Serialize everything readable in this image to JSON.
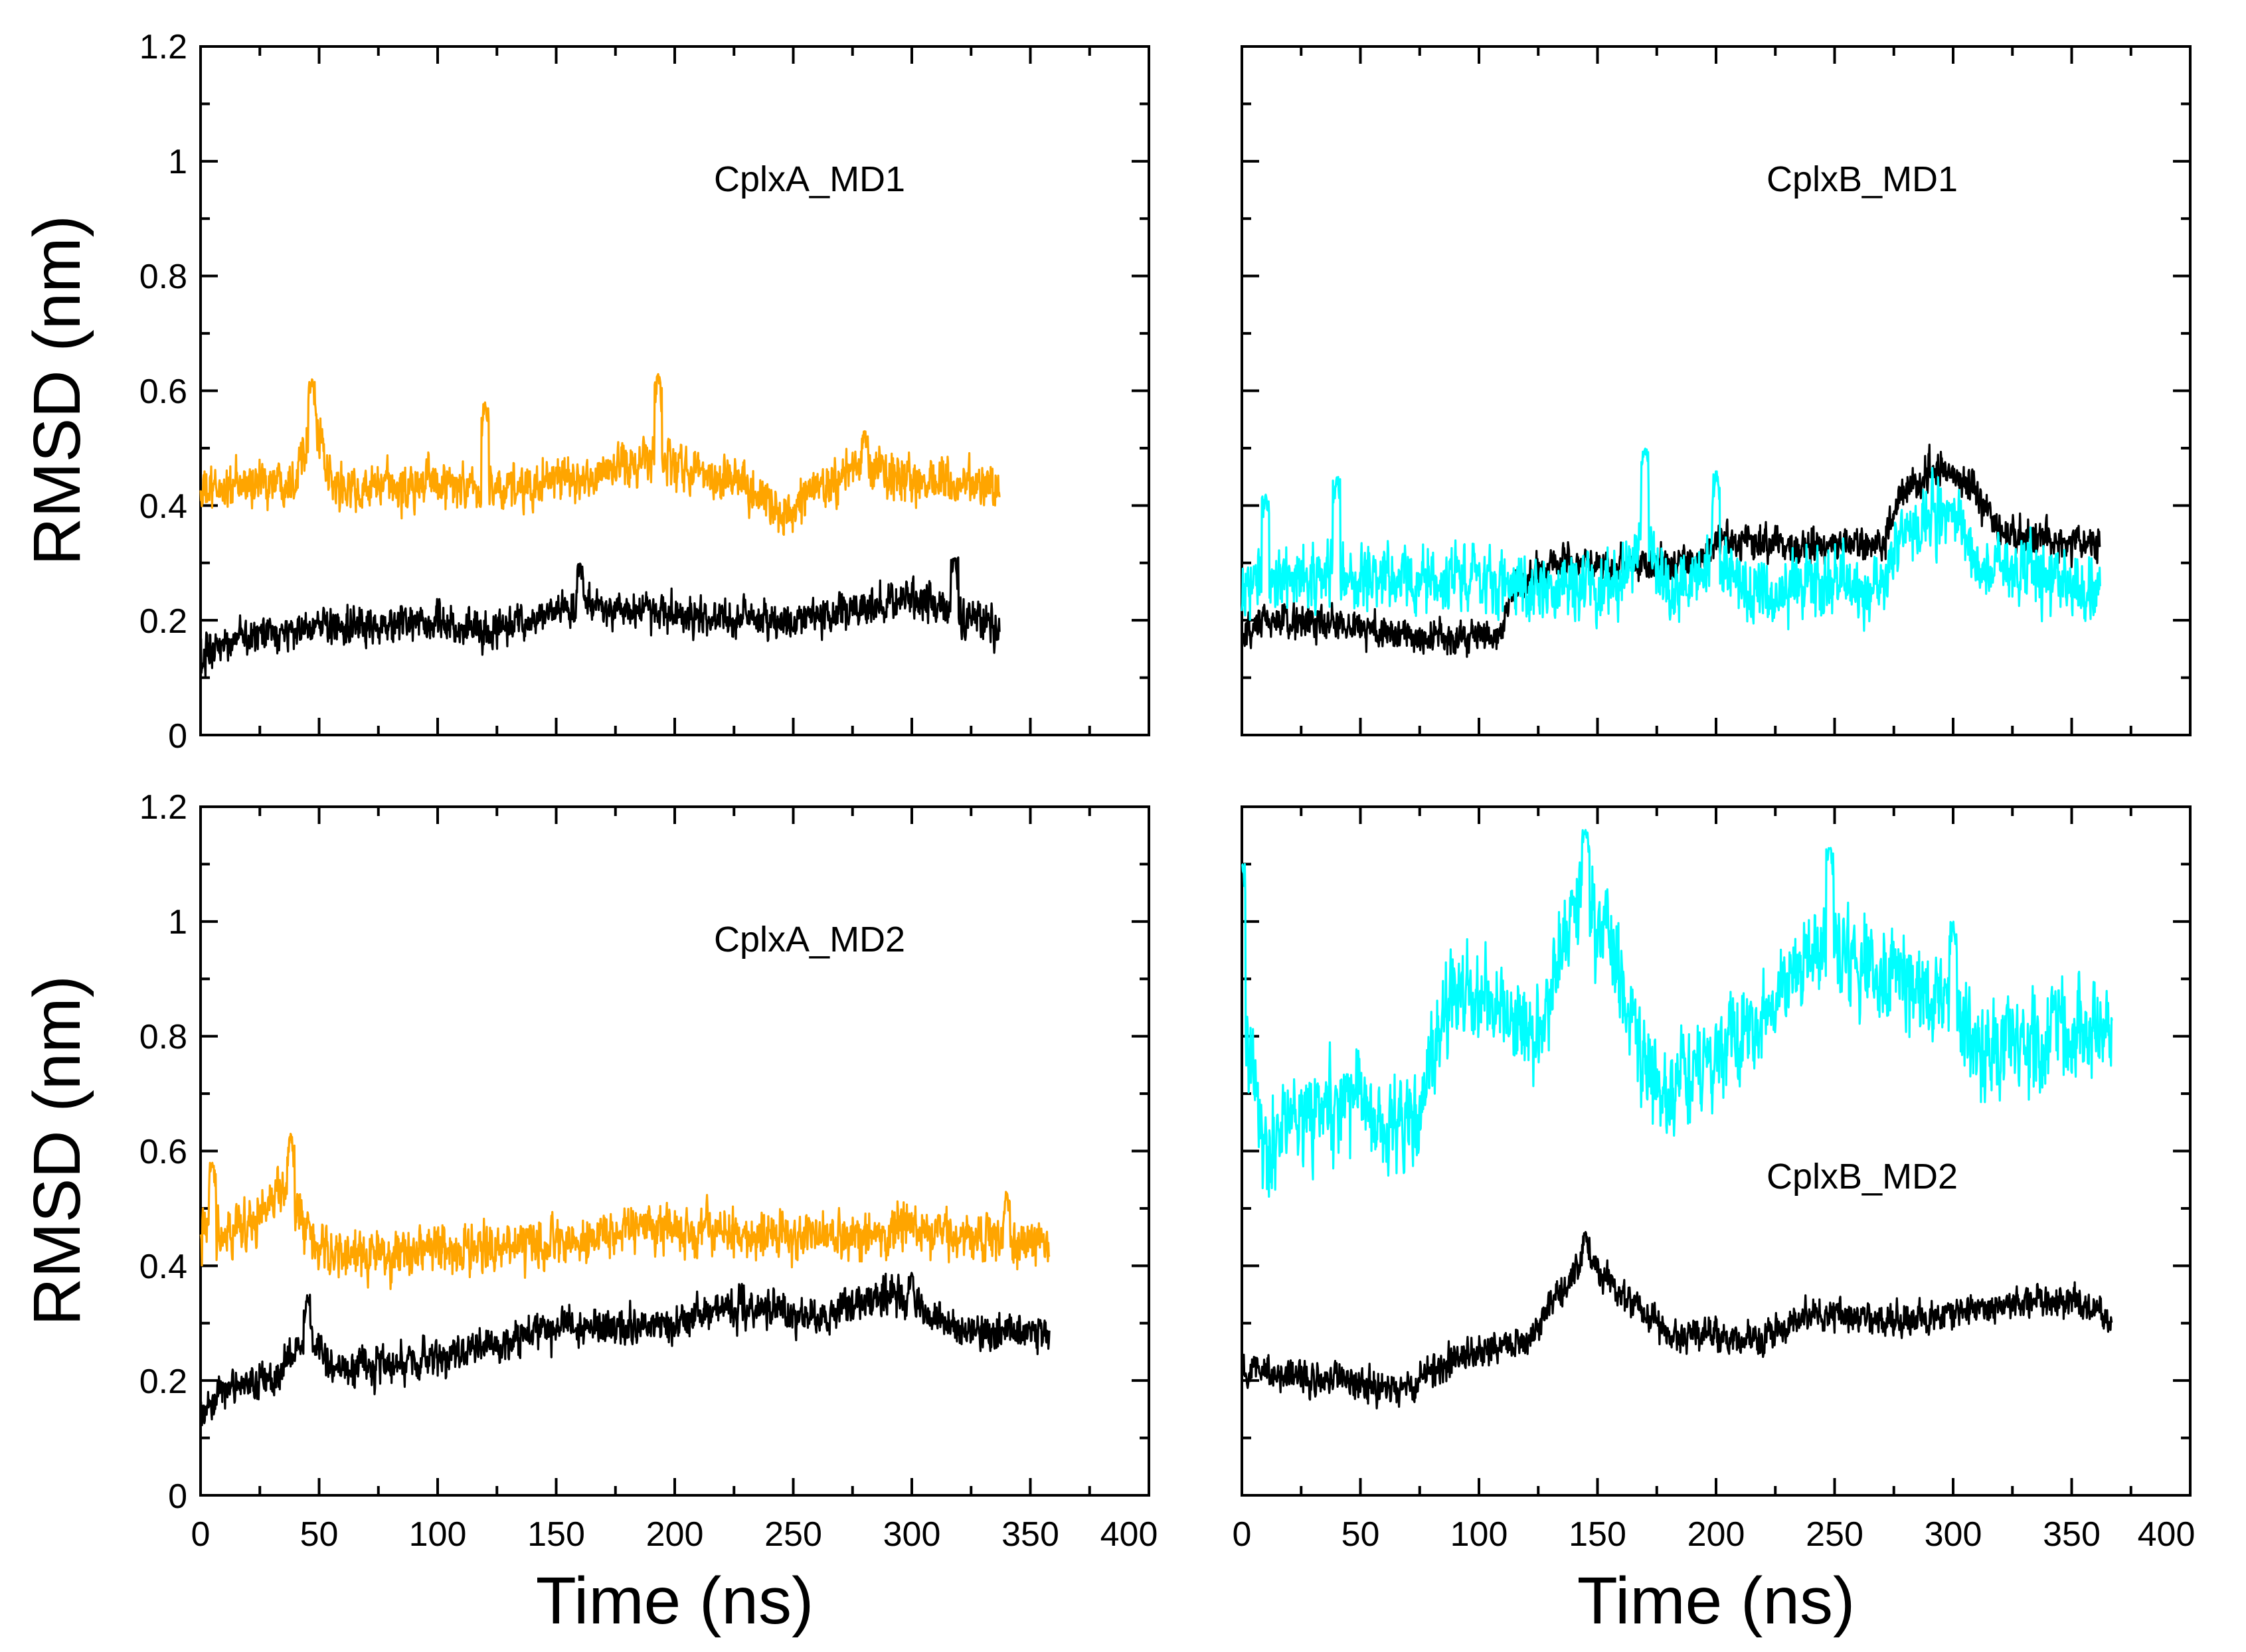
{
  "chart_data": [
    {
      "type": "line",
      "panel": "top-left",
      "annotation": "CplxA_MD1",
      "ylabel": "RMSD (nm)",
      "xlabel": "",
      "xlim": [
        0,
        400
      ],
      "ylim": [
        0,
        1.2
      ],
      "x_ticks": [],
      "y_ticks": [
        "0",
        "0.2",
        "0.4",
        "0.6",
        "0.8",
        "1",
        "1.2"
      ],
      "series": [
        {
          "name": "orange",
          "color": "#FFA500",
          "t_end": 337,
          "noise": 0.028,
          "knots": [
            [
              0,
              0.42
            ],
            [
              10,
              0.43
            ],
            [
              40,
              0.45
            ],
            [
              47,
              0.56
            ],
            [
              55,
              0.43
            ],
            [
              80,
              0.43
            ],
            [
              100,
              0.44
            ],
            [
              120,
              0.42
            ],
            [
              160,
              0.45
            ],
            [
              192,
              0.48
            ],
            [
              200,
              0.47
            ],
            [
              230,
              0.44
            ],
            [
              245,
              0.38
            ],
            [
              260,
              0.43
            ],
            [
              280,
              0.47
            ],
            [
              300,
              0.44
            ],
            [
              337,
              0.44
            ]
          ],
          "spikes": [
            [
              47,
              0.62
            ],
            [
              120,
              0.58
            ],
            [
              193,
              0.63
            ],
            [
              280,
              0.53
            ]
          ]
        },
        {
          "name": "black",
          "color": "#000000",
          "t_end": 337,
          "noise": 0.022,
          "knots": [
            [
              0,
              0.13
            ],
            [
              10,
              0.17
            ],
            [
              50,
              0.19
            ],
            [
              70,
              0.19
            ],
            [
              100,
              0.2
            ],
            [
              120,
              0.18
            ],
            [
              160,
              0.23
            ],
            [
              200,
              0.21
            ],
            [
              250,
              0.2
            ],
            [
              270,
              0.21
            ],
            [
              300,
              0.24
            ],
            [
              337,
              0.19
            ]
          ],
          "spikes": [
            [
              160,
              0.3
            ],
            [
              318,
              0.31
            ]
          ]
        }
      ]
    },
    {
      "type": "line",
      "panel": "top-right",
      "annotation": "CplxB_MD1",
      "ylabel": "",
      "xlabel": "",
      "xlim": [
        0,
        400
      ],
      "ylim": [
        0,
        1.2
      ],
      "x_ticks": [],
      "y_ticks": [],
      "series": [
        {
          "name": "black",
          "color": "#000000",
          "t_end": 362,
          "noise": 0.022,
          "knots": [
            [
              0,
              0.16
            ],
            [
              10,
              0.2
            ],
            [
              50,
              0.19
            ],
            [
              70,
              0.17
            ],
            [
              108,
              0.17
            ],
            [
              115,
              0.25
            ],
            [
              130,
              0.3
            ],
            [
              170,
              0.3
            ],
            [
              190,
              0.3
            ],
            [
              200,
              0.34
            ],
            [
              210,
              0.34
            ],
            [
              240,
              0.33
            ],
            [
              270,
              0.33
            ],
            [
              280,
              0.43
            ],
            [
              290,
              0.46
            ],
            [
              300,
              0.46
            ],
            [
              310,
              0.42
            ],
            [
              320,
              0.35
            ],
            [
              362,
              0.33
            ]
          ],
          "spikes": []
        },
        {
          "name": "cyan",
          "color": "#00FFFF",
          "t_end": 362,
          "noise": 0.04,
          "knots": [
            [
              0,
              0.26
            ],
            [
              30,
              0.28
            ],
            [
              60,
              0.28
            ],
            [
              100,
              0.27
            ],
            [
              140,
              0.25
            ],
            [
              160,
              0.27
            ],
            [
              170,
              0.35
            ],
            [
              180,
              0.24
            ],
            [
              200,
              0.3
            ],
            [
              220,
              0.24
            ],
            [
              250,
              0.27
            ],
            [
              270,
              0.25
            ],
            [
              280,
              0.36
            ],
            [
              300,
              0.4
            ],
            [
              310,
              0.3
            ],
            [
              362,
              0.25
            ]
          ],
          "spikes": [
            [
              10,
              0.42
            ],
            [
              40,
              0.45
            ],
            [
              170,
              0.5
            ],
            [
              200,
              0.46
            ]
          ]
        }
      ]
    },
    {
      "type": "line",
      "panel": "bottom-left",
      "annotation": "CplxA_MD2",
      "ylabel": "RMSD (nm)",
      "xlabel": "Time (ns)",
      "xlim": [
        0,
        400
      ],
      "ylim": [
        0,
        1.2
      ],
      "x_ticks": [
        "0",
        "50",
        "100",
        "150",
        "200",
        "250",
        "300",
        "350",
        "400"
      ],
      "y_ticks": [
        "0",
        "0.2",
        "0.4",
        "0.6",
        "0.8",
        "1",
        "1.2"
      ],
      "series": [
        {
          "name": "orange",
          "color": "#FFA500",
          "t_end": 358,
          "noise": 0.03,
          "knots": [
            [
              0,
              0.45
            ],
            [
              20,
              0.47
            ],
            [
              35,
              0.53
            ],
            [
              50,
              0.42
            ],
            [
              80,
              0.42
            ],
            [
              120,
              0.43
            ],
            [
              150,
              0.44
            ],
            [
              200,
              0.47
            ],
            [
              250,
              0.45
            ],
            [
              300,
              0.46
            ],
            [
              358,
              0.44
            ]
          ],
          "spikes": [
            [
              5,
              0.58
            ],
            [
              38,
              0.63
            ],
            [
              340,
              0.53
            ]
          ]
        },
        {
          "name": "black",
          "color": "#000000",
          "t_end": 358,
          "noise": 0.024,
          "knots": [
            [
              0,
              0.14
            ],
            [
              10,
              0.19
            ],
            [
              30,
              0.2
            ],
            [
              45,
              0.27
            ],
            [
              60,
              0.22
            ],
            [
              100,
              0.24
            ],
            [
              150,
              0.29
            ],
            [
              200,
              0.3
            ],
            [
              220,
              0.33
            ],
            [
              260,
              0.31
            ],
            [
              290,
              0.35
            ],
            [
              300,
              0.33
            ],
            [
              320,
              0.29
            ],
            [
              358,
              0.28
            ]
          ],
          "spikes": [
            [
              45,
              0.35
            ],
            [
              300,
              0.39
            ]
          ]
        }
      ]
    },
    {
      "type": "line",
      "panel": "bottom-right",
      "annotation": "CplxB_MD2",
      "ylabel": "",
      "xlabel": "Time (ns)",
      "xlim": [
        0,
        400
      ],
      "ylim": [
        0,
        1.2
      ],
      "x_ticks": [
        "0",
        "50",
        "100",
        "150",
        "200",
        "250",
        "300",
        "350",
        "400"
      ],
      "y_ticks": [],
      "series": [
        {
          "name": "cyan",
          "color": "#00FFFF",
          "t_end": 367,
          "noise": 0.06,
          "knots": [
            [
              0,
              0.95
            ],
            [
              3,
              0.75
            ],
            [
              10,
              0.6
            ],
            [
              30,
              0.66
            ],
            [
              50,
              0.7
            ],
            [
              60,
              0.65
            ],
            [
              75,
              0.65
            ],
            [
              82,
              0.78
            ],
            [
              90,
              0.88
            ],
            [
              110,
              0.85
            ],
            [
              125,
              0.8
            ],
            [
              140,
              1.0
            ],
            [
              150,
              1.0
            ],
            [
              160,
              0.9
            ],
            [
              175,
              0.7
            ],
            [
              200,
              0.77
            ],
            [
              220,
              0.83
            ],
            [
              245,
              0.97
            ],
            [
              260,
              0.92
            ],
            [
              290,
              0.88
            ],
            [
              300,
              0.86
            ],
            [
              310,
              0.78
            ],
            [
              340,
              0.8
            ],
            [
              367,
              0.82
            ]
          ],
          "spikes": [
            [
              0,
              1.1
            ],
            [
              145,
              1.16
            ],
            [
              248,
              1.13
            ],
            [
              300,
              1.0
            ]
          ]
        },
        {
          "name": "black",
          "color": "#000000",
          "t_end": 367,
          "noise": 0.02,
          "knots": [
            [
              0,
              0.22
            ],
            [
              20,
              0.21
            ],
            [
              40,
              0.2
            ],
            [
              65,
              0.18
            ],
            [
              80,
              0.22
            ],
            [
              100,
              0.25
            ],
            [
              120,
              0.27
            ],
            [
              140,
              0.38
            ],
            [
              145,
              0.42
            ],
            [
              160,
              0.35
            ],
            [
              180,
              0.28
            ],
            [
              220,
              0.27
            ],
            [
              240,
              0.32
            ],
            [
              280,
              0.3
            ],
            [
              320,
              0.33
            ],
            [
              350,
              0.34
            ],
            [
              367,
              0.31
            ]
          ],
          "spikes": [
            [
              145,
              0.46
            ]
          ]
        }
      ]
    }
  ]
}
